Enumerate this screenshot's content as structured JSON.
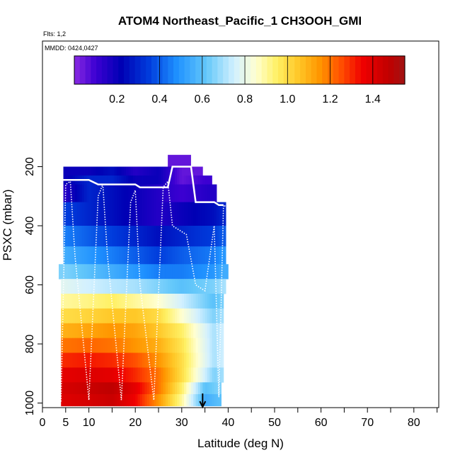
{
  "chart_data": {
    "type": "heatmap",
    "title": "ATOM4 Northeast_Pacific_1 CH3OOH_GMI",
    "flights_label": "Flts: 1,2",
    "dates_label": "MMDD: 0424,0427",
    "xlabel": "Latitude (deg N)",
    "ylabel": "PSXC (mbar)",
    "xlim": [
      0,
      85
    ],
    "ylim": [
      1010,
      80
    ],
    "x_ticks": [
      0,
      5,
      10,
      20,
      30,
      40,
      50,
      60,
      70,
      80
    ],
    "x_minor_ticks": [
      15,
      25,
      35,
      45,
      55,
      65,
      75,
      85
    ],
    "y_ticks": [
      200,
      400,
      600,
      800,
      1000
    ],
    "colorbar": {
      "min": 0.0,
      "max": 1.55,
      "ticks": [
        0.2,
        0.4,
        0.6,
        0.8,
        1.0,
        1.2,
        1.4
      ],
      "tick_labels": [
        "0.2",
        "0.4",
        "0.6",
        "0.8",
        "1.0",
        "1.2",
        "1.4"
      ],
      "boundaries": [
        0.0,
        0.4,
        0.6,
        0.8,
        1.0,
        1.2,
        1.4
      ],
      "colors": [
        "#8a2be2",
        "#0000cd",
        "#1e90ff",
        "#87cefa",
        "#e0ffff",
        "#ffffe0",
        "#ffff00",
        "#ffd700",
        "#ffa500",
        "#ff4500",
        "#ff0000",
        "#b22222"
      ]
    },
    "pressure_levels": [
      215,
      245,
      275,
      305,
      335,
      365,
      395,
      425,
      455,
      485,
      515,
      545,
      575,
      605,
      635,
      665,
      695,
      725,
      755,
      785,
      815,
      845,
      875,
      905,
      935,
      965,
      995
    ],
    "bands": [
      {
        "p_top": 200,
        "p_bottom": 230,
        "x_range": [
          4.5,
          34.5
        ],
        "value_lat_pairs": [
          [
            5,
            0.2
          ],
          [
            10,
            0.2
          ],
          [
            15,
            0.25
          ],
          [
            20,
            0.15
          ],
          [
            25,
            0.2
          ],
          [
            30,
            0.05
          ],
          [
            34,
            0.05
          ]
        ]
      },
      {
        "p_top": 230,
        "p_bottom": 260,
        "x_range": [
          4.5,
          36.5
        ],
        "value_lat_pairs": [
          [
            5,
            0.2
          ],
          [
            10,
            0.3
          ],
          [
            15,
            0.3
          ],
          [
            20,
            0.2
          ],
          [
            25,
            0.2
          ],
          [
            30,
            0.05
          ],
          [
            35,
            0.1
          ]
        ]
      },
      {
        "p_top": 260,
        "p_bottom": 320,
        "x_range": [
          4.5,
          37.5
        ],
        "value_lat_pairs": [
          [
            5,
            0.15
          ],
          [
            10,
            0.3
          ],
          [
            15,
            0.25
          ],
          [
            20,
            0.2
          ],
          [
            25,
            0.15
          ],
          [
            30,
            0.1
          ],
          [
            36,
            0.15
          ]
        ]
      },
      {
        "p_top": 320,
        "p_bottom": 400,
        "x_range": [
          4.5,
          39.5
        ],
        "value_lat_pairs": [
          [
            5,
            0.35
          ],
          [
            10,
            0.3
          ],
          [
            15,
            0.25
          ],
          [
            20,
            0.2
          ],
          [
            25,
            0.15
          ],
          [
            30,
            0.2
          ],
          [
            37,
            0.25
          ],
          [
            39,
            0.3
          ]
        ]
      },
      {
        "p_top": 400,
        "p_bottom": 470,
        "x_range": [
          4.5,
          39.5
        ],
        "value_lat_pairs": [
          [
            5,
            0.45
          ],
          [
            10,
            0.4
          ],
          [
            15,
            0.35
          ],
          [
            20,
            0.3
          ],
          [
            25,
            0.25
          ],
          [
            30,
            0.3
          ],
          [
            37,
            0.35
          ],
          [
            39,
            0.4
          ]
        ]
      },
      {
        "p_top": 470,
        "p_bottom": 530,
        "x_range": [
          4.5,
          39.5
        ],
        "value_lat_pairs": [
          [
            5,
            0.55
          ],
          [
            10,
            0.5
          ],
          [
            15,
            0.45
          ],
          [
            20,
            0.4
          ],
          [
            25,
            0.35
          ],
          [
            30,
            0.4
          ],
          [
            37,
            0.45
          ],
          [
            39,
            0.5
          ]
        ]
      },
      {
        "p_top": 530,
        "p_bottom": 580,
        "x_range": [
          3.5,
          40
        ],
        "value_lat_pairs": [
          [
            5,
            0.65
          ],
          [
            10,
            0.6
          ],
          [
            15,
            0.55
          ],
          [
            20,
            0.5
          ],
          [
            25,
            0.45
          ],
          [
            30,
            0.45
          ],
          [
            37,
            0.5
          ],
          [
            39,
            0.55
          ]
        ]
      },
      {
        "p_top": 580,
        "p_bottom": 630,
        "x_range": [
          4,
          39.5
        ],
        "value_lat_pairs": [
          [
            5,
            0.78
          ],
          [
            10,
            0.75
          ],
          [
            15,
            0.72
          ],
          [
            20,
            0.7
          ],
          [
            25,
            0.65
          ],
          [
            30,
            0.6
          ],
          [
            37,
            0.65
          ],
          [
            39,
            0.7
          ]
        ]
      },
      {
        "p_top": 630,
        "p_bottom": 680,
        "x_range": [
          4,
          39
        ],
        "value_lat_pairs": [
          [
            5,
            0.9
          ],
          [
            10,
            0.92
          ],
          [
            15,
            0.95
          ],
          [
            20,
            0.9
          ],
          [
            25,
            0.85
          ],
          [
            30,
            0.75
          ],
          [
            37,
            0.6
          ],
          [
            39,
            0.65
          ]
        ]
      },
      {
        "p_top": 680,
        "p_bottom": 730,
        "x_range": [
          4,
          39
        ],
        "value_lat_pairs": [
          [
            5,
            1.0
          ],
          [
            10,
            1.02
          ],
          [
            15,
            1.05
          ],
          [
            20,
            1.05
          ],
          [
            25,
            1.0
          ],
          [
            30,
            0.85
          ],
          [
            37,
            0.65
          ],
          [
            39,
            0.7
          ]
        ]
      },
      {
        "p_top": 730,
        "p_bottom": 780,
        "x_range": [
          4,
          39
        ],
        "value_lat_pairs": [
          [
            5,
            1.1
          ],
          [
            10,
            1.12
          ],
          [
            15,
            1.15
          ],
          [
            20,
            1.12
          ],
          [
            25,
            1.05
          ],
          [
            30,
            0.95
          ],
          [
            37,
            0.7
          ],
          [
            39,
            0.75
          ]
        ]
      },
      {
        "p_top": 780,
        "p_bottom": 830,
        "x_range": [
          4,
          39
        ],
        "value_lat_pairs": [
          [
            5,
            1.2
          ],
          [
            10,
            1.22
          ],
          [
            15,
            1.2
          ],
          [
            20,
            1.15
          ],
          [
            25,
            1.1
          ],
          [
            30,
            0.98
          ],
          [
            37,
            0.7
          ],
          [
            39,
            0.75
          ]
        ]
      },
      {
        "p_top": 830,
        "p_bottom": 880,
        "x_range": [
          4,
          39
        ],
        "value_lat_pairs": [
          [
            5,
            1.3
          ],
          [
            10,
            1.32
          ],
          [
            15,
            1.3
          ],
          [
            20,
            1.25
          ],
          [
            25,
            1.15
          ],
          [
            30,
            1.0
          ],
          [
            37,
            0.7
          ],
          [
            39,
            0.75
          ]
        ]
      },
      {
        "p_top": 880,
        "p_bottom": 930,
        "x_range": [
          4,
          39
        ],
        "value_lat_pairs": [
          [
            5,
            1.38
          ],
          [
            10,
            1.4
          ],
          [
            15,
            1.38
          ],
          [
            20,
            1.3
          ],
          [
            25,
            1.2
          ],
          [
            30,
            1.0
          ],
          [
            37,
            0.65
          ],
          [
            39,
            0.7
          ]
        ]
      },
      {
        "p_top": 930,
        "p_bottom": 970,
        "x_range": [
          4,
          38.5
        ],
        "value_lat_pairs": [
          [
            5,
            1.42
          ],
          [
            10,
            1.45
          ],
          [
            15,
            1.48
          ],
          [
            20,
            1.38
          ],
          [
            25,
            1.2
          ],
          [
            30,
            0.95
          ],
          [
            35,
            0.6
          ],
          [
            38,
            0.65
          ]
        ]
      },
      {
        "p_top": 970,
        "p_bottom": 1010,
        "x_range": [
          4,
          38.5
        ],
        "value_lat_pairs": [
          [
            5,
            1.4
          ],
          [
            10,
            1.42
          ],
          [
            15,
            1.45
          ],
          [
            20,
            1.35
          ],
          [
            25,
            1.15
          ],
          [
            30,
            0.9
          ],
          [
            35,
            0.55
          ],
          [
            38,
            0.6
          ]
        ]
      }
    ],
    "top_band": {
      "p_top": 160,
      "p_bottom": 200,
      "x_range": [
        27,
        32
      ],
      "value": 0.05
    },
    "flight_tracks": [
      {
        "name": "solid-track",
        "points": [
          [
            4.5,
            245
          ],
          [
            10,
            245
          ],
          [
            12,
            260
          ],
          [
            20,
            260
          ],
          [
            21,
            270
          ],
          [
            27,
            270
          ],
          [
            28,
            200
          ],
          [
            32,
            200
          ],
          [
            33,
            320
          ],
          [
            37,
            320
          ],
          [
            38,
            330
          ],
          [
            39,
            330
          ]
        ]
      },
      {
        "name": "dotted-profiles",
        "points": [
          [
            4,
            995
          ],
          [
            5,
            260
          ],
          [
            6,
            250
          ],
          [
            7,
            500
          ],
          [
            10,
            990
          ],
          [
            12,
            300
          ],
          [
            13,
            260
          ],
          [
            14,
            500
          ],
          [
            17,
            990
          ],
          [
            19,
            320
          ],
          [
            20,
            280
          ],
          [
            21,
            600
          ],
          [
            24,
            990
          ],
          [
            26,
            270
          ],
          [
            27,
            250
          ],
          [
            28,
            400
          ],
          [
            31,
            430
          ],
          [
            33,
            600
          ],
          [
            35,
            620
          ],
          [
            37,
            400
          ],
          [
            38,
            980
          ],
          [
            39,
            330
          ],
          [
            40,
            340
          ]
        ]
      }
    ],
    "arrow_latitude": 34.5
  }
}
